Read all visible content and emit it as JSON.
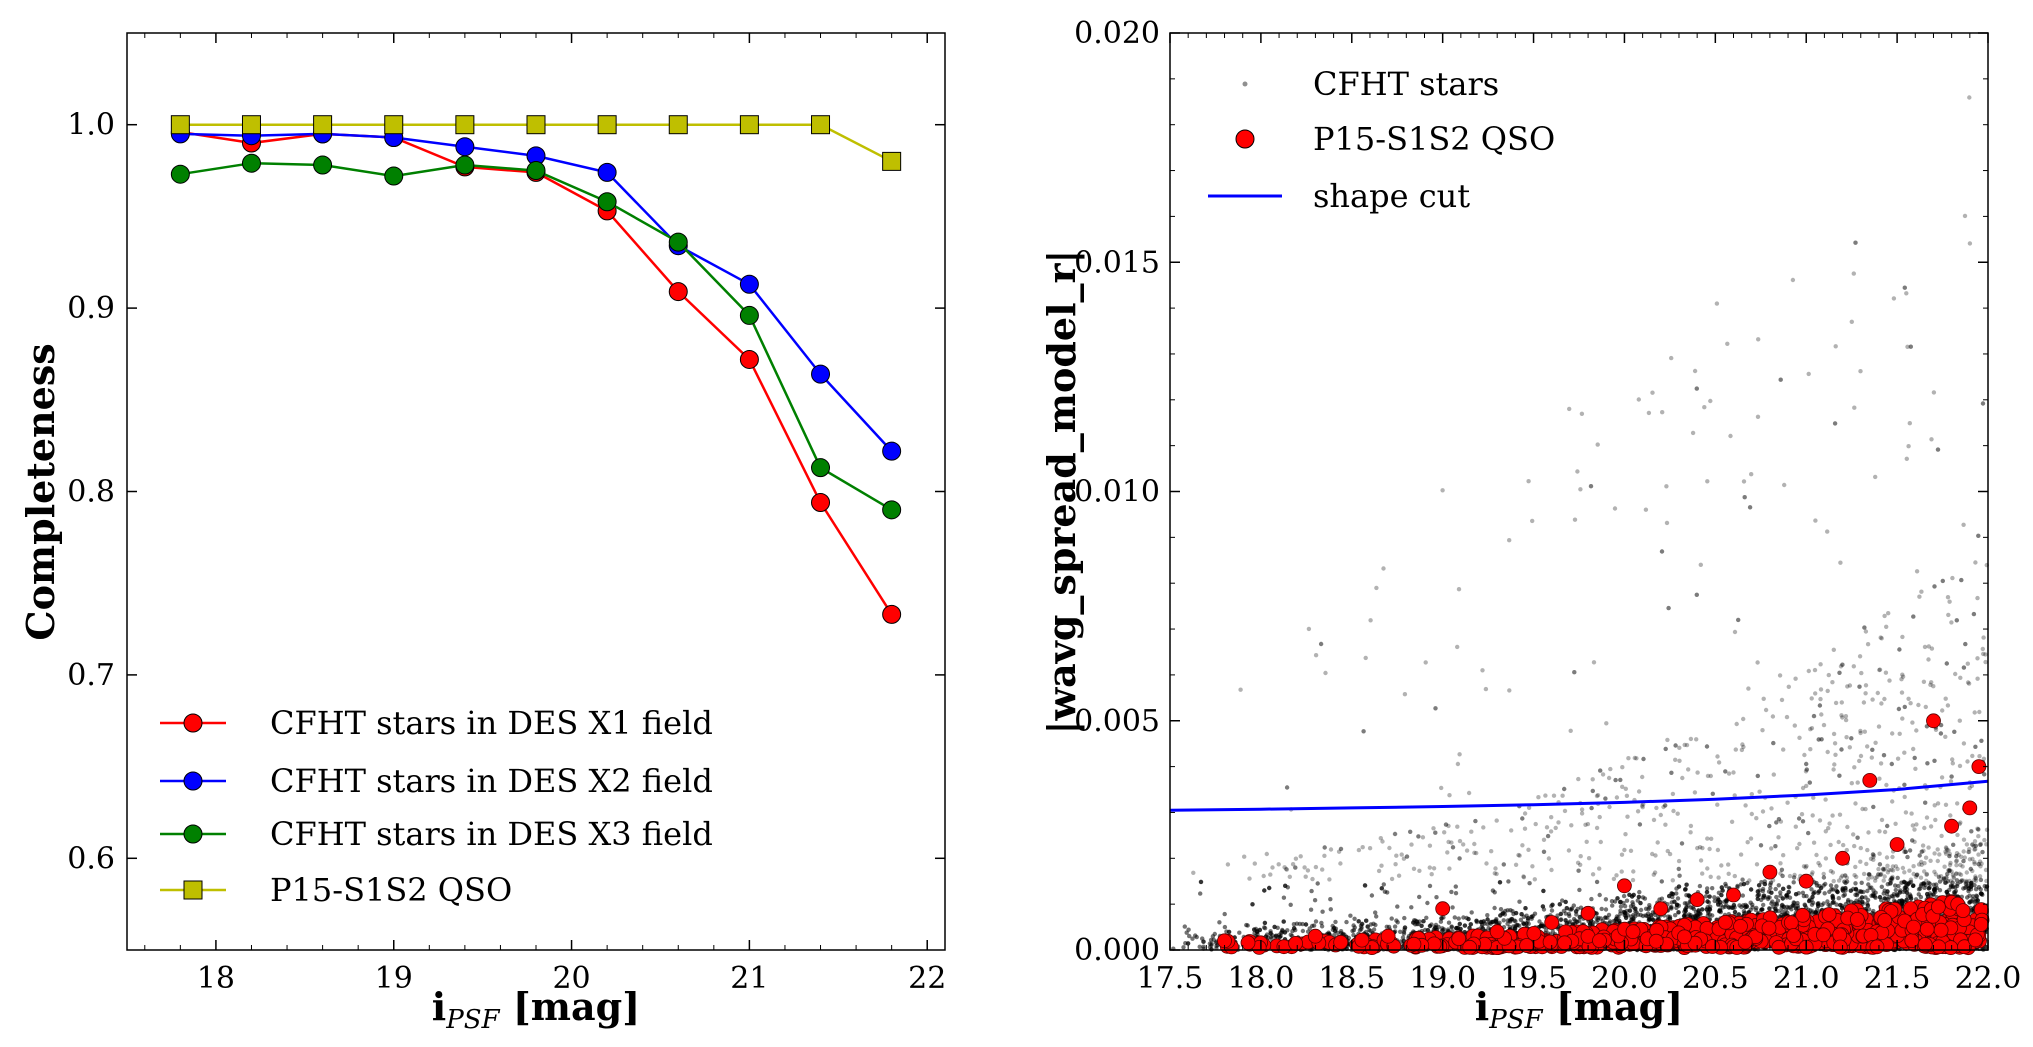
{
  "chart_data": [
    {
      "type": "line",
      "title": "",
      "xlabel": "i",
      "xlabel_sub": "PSF",
      "xlabel_unit": " [mag]",
      "ylabel": "Completeness",
      "xlim": [
        17.5,
        22.1
      ],
      "ylim": [
        0.55,
        1.05
      ],
      "xticks": [
        18,
        19,
        20,
        21,
        22
      ],
      "xtick_labels": [
        "18",
        "19",
        "20",
        "21",
        "22"
      ],
      "yticks": [
        0.6,
        0.7,
        0.8,
        0.9,
        1.0
      ],
      "ytick_labels": [
        "0.6",
        "0.7",
        "0.8",
        "0.9",
        "1.0"
      ],
      "grid": false,
      "legend_position": "lower-left",
      "x": [
        17.8,
        18.2,
        18.6,
        19.0,
        19.4,
        19.8,
        20.2,
        20.6,
        21.0,
        21.4,
        21.8
      ],
      "series": [
        {
          "name": "CFHT stars in DES X1 field",
          "color": "#ff0000",
          "marker": "circle",
          "values": [
            0.996,
            0.99,
            0.995,
            0.993,
            0.977,
            0.974,
            0.953,
            0.909,
            0.872,
            0.794,
            0.733
          ]
        },
        {
          "name": "CFHT stars in DES X2 field",
          "color": "#0000ff",
          "marker": "circle",
          "values": [
            0.995,
            0.994,
            0.995,
            0.993,
            0.988,
            0.983,
            0.974,
            0.934,
            0.913,
            0.864,
            0.822
          ]
        },
        {
          "name": "CFHT stars in DES X3 field",
          "color": "#008000",
          "marker": "circle",
          "values": [
            0.973,
            0.979,
            0.978,
            0.972,
            0.978,
            0.975,
            0.958,
            0.936,
            0.896,
            0.813,
            0.79
          ]
        },
        {
          "name": "P15-S1S2 QSO",
          "color": "#bfbf00",
          "marker": "square",
          "values": [
            1.0,
            1.0,
            1.0,
            1.0,
            1.0,
            1.0,
            1.0,
            1.0,
            1.0,
            1.0,
            0.98
          ]
        }
      ]
    },
    {
      "type": "scatter",
      "title": "",
      "xlabel": "i",
      "xlabel_sub": "PSF",
      "xlabel_unit": " [mag]",
      "ylabel": "|wavg_spread_model_r|",
      "xlim": [
        17.5,
        22.0
      ],
      "ylim": [
        0.0,
        0.02
      ],
      "xticks": [
        17.5,
        18.0,
        18.5,
        19.0,
        19.5,
        20.0,
        20.5,
        21.0,
        21.5,
        22.0
      ],
      "xtick_labels": [
        "17.5",
        "18.0",
        "18.5",
        "19.0",
        "19.5",
        "20.0",
        "20.5",
        "21.0",
        "21.5",
        "22.0"
      ],
      "yticks": [
        0.0,
        0.005,
        0.01,
        0.015,
        0.02
      ],
      "ytick_labels": [
        "0.000",
        "0.005",
        "0.010",
        "0.015",
        "0.020"
      ],
      "grid": false,
      "legend_position": "top-left",
      "series": [
        {
          "name": "CFHT stars",
          "color": "#808080",
          "marker": "dot",
          "note": "dense cloud, concentrated near 0.000-0.001, spreading upward with magnitude"
        },
        {
          "name": "P15-S1S2 QSO",
          "color": "#ff0000",
          "marker": "circle",
          "x": [
            17.8,
            18.3,
            18.7,
            19.0,
            19.3,
            19.6,
            19.8,
            20.0,
            20.2,
            20.4,
            20.6,
            20.8,
            21.0,
            21.2,
            21.35,
            21.5,
            21.7,
            21.8,
            21.9,
            21.95
          ],
          "y": [
            0.0002,
            0.0003,
            0.0003,
            0.0009,
            0.0004,
            0.0006,
            0.0008,
            0.0014,
            0.0009,
            0.0011,
            0.0012,
            0.0017,
            0.0015,
            0.002,
            0.0037,
            0.0023,
            0.005,
            0.0027,
            0.0031,
            0.004
          ]
        },
        {
          "name": "shape cut",
          "color": "#0000ff",
          "marker": "line",
          "x": [
            17.5,
            18.0,
            18.5,
            19.0,
            19.5,
            20.0,
            20.5,
            21.0,
            21.5,
            22.0
          ],
          "y": [
            0.00305,
            0.00307,
            0.0031,
            0.00313,
            0.00317,
            0.00322,
            0.00329,
            0.00338,
            0.0035,
            0.00368
          ]
        }
      ]
    }
  ]
}
